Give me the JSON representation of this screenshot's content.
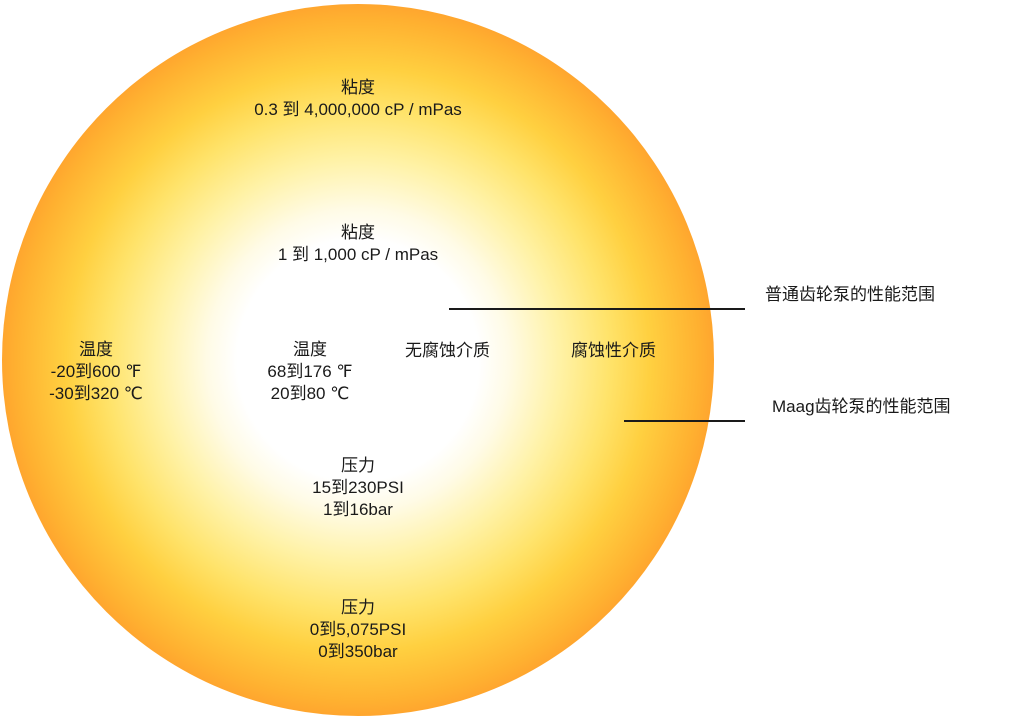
{
  "outer": {
    "viscosity": {
      "title": "粘度",
      "value": "0.3 到 4,000,000 cP / mPas"
    },
    "temperature": {
      "title": "温度",
      "fahrenheit": "-20到600 ℉",
      "celsius": "-30到320 ℃"
    },
    "pressure": {
      "title": "压力",
      "psi": "0到5,075PSI",
      "bar": "0到350bar"
    },
    "media": "腐蚀性介质"
  },
  "inner": {
    "viscosity": {
      "title": "粘度",
      "value": "1 到 1,000 cP / mPas"
    },
    "temperature": {
      "title": "温度",
      "fahrenheit": "68到176 ℉",
      "celsius": "20到80 ℃"
    },
    "pressure": {
      "title": "压力",
      "psi": "15到230PSI",
      "bar": "1到16bar"
    },
    "media": "无腐蚀介质"
  },
  "legend": {
    "standard": "普通齿轮泵的性能范围",
    "maag": "Maag齿轮泵的性能范围"
  },
  "colors": {
    "center": "#ffffff",
    "mid": "#ffe36a",
    "edge": "#e8281a",
    "text": "#1a1a1a"
  }
}
